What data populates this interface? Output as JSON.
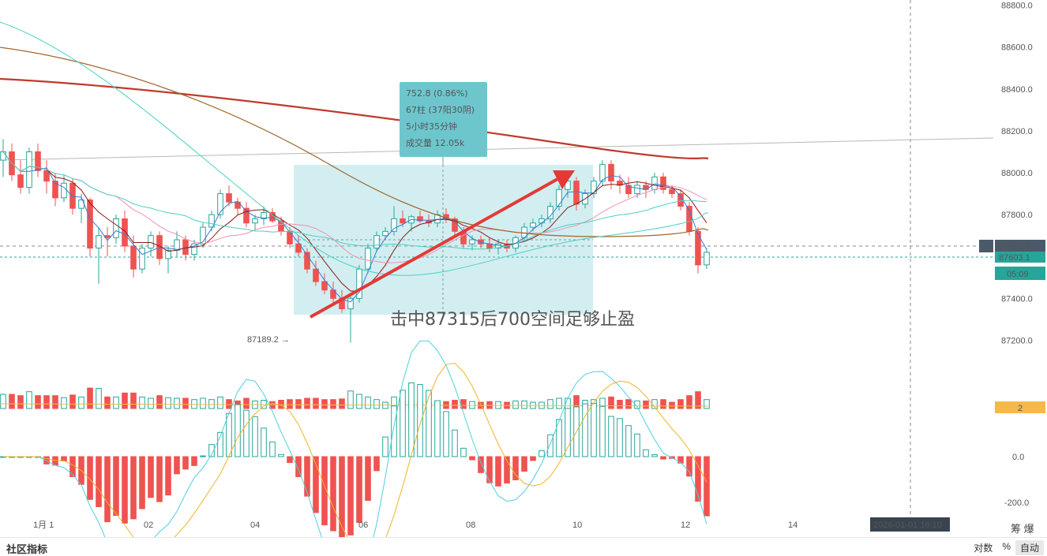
{
  "chart_data": {
    "type": "candlestick",
    "price_axis": {
      "ticks": [
        88800.0,
        88600.0,
        88400.0,
        88200.0,
        88000.0,
        87800.0,
        87400.0,
        87200.0
      ],
      "tick_labels": [
        "88800.0",
        "88600.0",
        "88400.0",
        "88200.0",
        "88000.0",
        "87800.0",
        "87400.0",
        "87200.0"
      ],
      "range": [
        87100,
        88870
      ]
    },
    "macd_axis": {
      "tick_labels": [
        "0.0",
        "-200.0"
      ]
    },
    "x_axis": {
      "labels": [
        "1月 1",
        "02",
        "04",
        "06",
        "08",
        "10",
        "12",
        "14"
      ]
    },
    "price_badges": {
      "crosshair": "87658.0",
      "last": "87603.1",
      "countdown": "05:09",
      "volume": "2"
    },
    "date_badge": "2026-01-01 16:10",
    "measure_box": {
      "lines": [
        "752.8 (0.86%)",
        "67柱 (37阳30阴)",
        "5小时35分钟",
        "成交量 12.05k"
      ]
    },
    "low_label": "87189.2",
    "annotation": "击中87315后700空间足够止盈",
    "colors": {
      "up": "#26a69a",
      "down": "#ef5350",
      "ma200": "#c0392b",
      "measure": "#72c9d2",
      "annotation": "#e53935"
    },
    "candles": [
      [
        88060,
        88160,
        87980,
        88100
      ],
      [
        88100,
        88140,
        87960,
        87990
      ],
      [
        87990,
        88060,
        87900,
        87930
      ],
      [
        87930,
        88120,
        87900,
        88100
      ],
      [
        88100,
        88140,
        87980,
        88010
      ],
      [
        88010,
        88060,
        87900,
        87960
      ],
      [
        87960,
        88000,
        87840,
        87880
      ],
      [
        87880,
        87990,
        87860,
        87950
      ],
      [
        87950,
        87970,
        87800,
        87830
      ],
      [
        87830,
        87900,
        87760,
        87870
      ],
      [
        87870,
        87880,
        87600,
        87640
      ],
      [
        87640,
        87740,
        87470,
        87700
      ],
      [
        87700,
        87740,
        87600,
        87690
      ],
      [
        87690,
        87800,
        87660,
        87780
      ],
      [
        87780,
        87820,
        87620,
        87650
      ],
      [
        87650,
        87700,
        87500,
        87540
      ],
      [
        87540,
        87660,
        87520,
        87640
      ],
      [
        87640,
        87720,
        87600,
        87700
      ],
      [
        87700,
        87720,
        87560,
        87590
      ],
      [
        87590,
        87650,
        87520,
        87630
      ],
      [
        87630,
        87720,
        87600,
        87680
      ],
      [
        87680,
        87700,
        87580,
        87610
      ],
      [
        87610,
        87680,
        87580,
        87660
      ],
      [
        87660,
        87760,
        87640,
        87740
      ],
      [
        87740,
        87820,
        87720,
        87800
      ],
      [
        87800,
        87920,
        87780,
        87900
      ],
      [
        87900,
        87940,
        87840,
        87860
      ],
      [
        87860,
        87880,
        87800,
        87830
      ],
      [
        87830,
        87860,
        87740,
        87760
      ],
      [
        87760,
        87800,
        87720,
        87780
      ],
      [
        87780,
        87840,
        87750,
        87810
      ],
      [
        87810,
        87830,
        87760,
        87770
      ],
      [
        87770,
        87790,
        87700,
        87720
      ],
      [
        87720,
        87740,
        87640,
        87660
      ],
      [
        87660,
        87700,
        87600,
        87620
      ],
      [
        87620,
        87640,
        87520,
        87540
      ],
      [
        87540,
        87580,
        87460,
        87480
      ],
      [
        87480,
        87520,
        87420,
        87440
      ],
      [
        87440,
        87480,
        87380,
        87400
      ],
      [
        87400,
        87440,
        87330,
        87350
      ],
      [
        87350,
        87420,
        87189,
        87400
      ],
      [
        87400,
        87560,
        87380,
        87540
      ],
      [
        87540,
        87660,
        87520,
        87640
      ],
      [
        87640,
        87720,
        87620,
        87700
      ],
      [
        87700,
        87740,
        87680,
        87720
      ],
      [
        87720,
        87840,
        87700,
        87780
      ],
      [
        87780,
        87820,
        87740,
        87760
      ],
      [
        87760,
        87800,
        87720,
        87790
      ],
      [
        87790,
        87820,
        87760,
        87770
      ],
      [
        87770,
        87800,
        87740,
        87760
      ],
      [
        87760,
        87820,
        87740,
        87800
      ],
      [
        87800,
        87830,
        87760,
        87780
      ],
      [
        87780,
        87790,
        87700,
        87720
      ],
      [
        87720,
        87740,
        87640,
        87660
      ],
      [
        87660,
        87700,
        87630,
        87680
      ],
      [
        87680,
        87700,
        87640,
        87660
      ],
      [
        87660,
        87690,
        87620,
        87640
      ],
      [
        87640,
        87680,
        87610,
        87660
      ],
      [
        87660,
        87680,
        87620,
        87640
      ],
      [
        87640,
        87700,
        87620,
        87690
      ],
      [
        87690,
        87760,
        87680,
        87740
      ],
      [
        87740,
        87780,
        87720,
        87760
      ],
      [
        87760,
        87800,
        87740,
        87780
      ],
      [
        87780,
        87860,
        87760,
        87840
      ],
      [
        87840,
        87940,
        87820,
        87920
      ],
      [
        87920,
        88000,
        87880,
        87960
      ],
      [
        87960,
        87980,
        87820,
        87850
      ],
      [
        87850,
        87920,
        87830,
        87900
      ],
      [
        87900,
        87980,
        87880,
        87960
      ],
      [
        87960,
        88060,
        87940,
        88040
      ],
      [
        88040,
        88060,
        87920,
        87960
      ],
      [
        87960,
        87990,
        87900,
        87940
      ],
      [
        87940,
        87980,
        87880,
        87900
      ],
      [
        87900,
        87960,
        87880,
        87940
      ],
      [
        87940,
        87960,
        87880,
        87920
      ],
      [
        87920,
        88000,
        87900,
        87980
      ],
      [
        87980,
        88000,
        87900,
        87920
      ],
      [
        87920,
        87940,
        87880,
        87900
      ],
      [
        87900,
        87920,
        87820,
        87840
      ],
      [
        87840,
        87860,
        87700,
        87720
      ],
      [
        87720,
        87740,
        87520,
        87560
      ],
      [
        87560,
        87640,
        87540,
        87620
      ]
    ]
  }
}
